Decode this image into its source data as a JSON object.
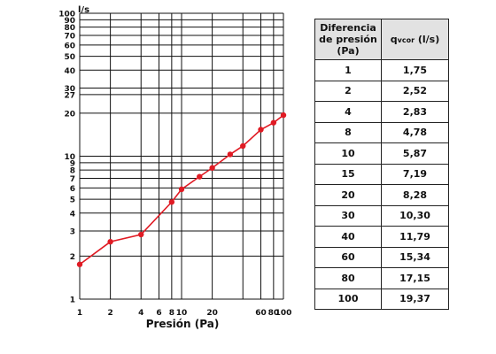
{
  "chart_data": {
    "type": "line",
    "xscale": "log",
    "yscale": "log",
    "xlabel": "Presión (Pa)",
    "ylabel": "l/s",
    "xlim": [
      1,
      100
    ],
    "ylim": [
      1,
      100
    ],
    "grid": true,
    "x_ticks": [
      1,
      2,
      4,
      6,
      8,
      10,
      20,
      60,
      80,
      100
    ],
    "x_gridlines": [
      1,
      2,
      4,
      6,
      8,
      10,
      20,
      40,
      60,
      80,
      100
    ],
    "y_ticks": [
      1,
      2,
      3,
      4,
      5,
      6,
      7,
      8,
      9,
      10,
      20,
      27,
      30,
      40,
      50,
      60,
      70,
      80,
      90,
      100
    ],
    "color": "#e01b24",
    "x": [
      1,
      2,
      4,
      8,
      10,
      15,
      20,
      30,
      40,
      60,
      80,
      100
    ],
    "y": [
      1.75,
      2.52,
      2.83,
      4.78,
      5.87,
      7.19,
      8.28,
      10.3,
      11.79,
      15.34,
      17.15,
      19.37
    ]
  },
  "table": {
    "header_col1": "Diferencia de presión (Pa)",
    "header_col2_main": "q",
    "header_col2_sub": "vcor",
    "header_col2_unit": " (l/s)",
    "rows": [
      [
        "1",
        "1,75"
      ],
      [
        "2",
        "2,52"
      ],
      [
        "4",
        "2,83"
      ],
      [
        "8",
        "4,78"
      ],
      [
        "10",
        "5,87"
      ],
      [
        "15",
        "7,19"
      ],
      [
        "20",
        "8,28"
      ],
      [
        "30",
        "10,30"
      ],
      [
        "40",
        "11,79"
      ],
      [
        "60",
        "15,34"
      ],
      [
        "80",
        "17,15"
      ],
      [
        "100",
        "19,37"
      ]
    ]
  }
}
